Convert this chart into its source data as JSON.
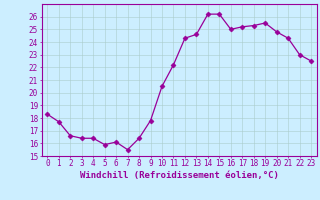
{
  "x": [
    0,
    1,
    2,
    3,
    4,
    5,
    6,
    7,
    8,
    9,
    10,
    11,
    12,
    13,
    14,
    15,
    16,
    17,
    18,
    19,
    20,
    21,
    22,
    23
  ],
  "y": [
    18.3,
    17.7,
    16.6,
    16.4,
    16.4,
    15.9,
    16.1,
    15.5,
    16.4,
    17.8,
    20.5,
    22.2,
    24.3,
    24.6,
    26.2,
    26.2,
    25.0,
    25.2,
    25.3,
    25.5,
    24.8,
    24.3,
    23.0,
    22.5
  ],
  "line_color": "#990099",
  "marker": "D",
  "marker_size": 2.5,
  "bg_color": "#cceeff",
  "grid_color": "#aacccc",
  "tick_color": "#990099",
  "label_color": "#990099",
  "xlabel": "Windchill (Refroidissement éolien,°C)",
  "ylim": [
    15,
    27
  ],
  "xlim": [
    -0.5,
    23.5
  ],
  "yticks": [
    15,
    16,
    17,
    18,
    19,
    20,
    21,
    22,
    23,
    24,
    25,
    26
  ],
  "xticks": [
    0,
    1,
    2,
    3,
    4,
    5,
    6,
    7,
    8,
    9,
    10,
    11,
    12,
    13,
    14,
    15,
    16,
    17,
    18,
    19,
    20,
    21,
    22,
    23
  ],
  "xtick_labels": [
    "0",
    "1",
    "2",
    "3",
    "4",
    "5",
    "6",
    "7",
    "8",
    "9",
    "10",
    "11",
    "12",
    "13",
    "14",
    "15",
    "16",
    "17",
    "18",
    "19",
    "20",
    "21",
    "22",
    "23"
  ],
  "ytick_labels": [
    "15",
    "16",
    "17",
    "18",
    "19",
    "20",
    "21",
    "22",
    "23",
    "24",
    "25",
    "26"
  ],
  "tick_fontsize": 5.5,
  "xlabel_fontsize": 6.5
}
